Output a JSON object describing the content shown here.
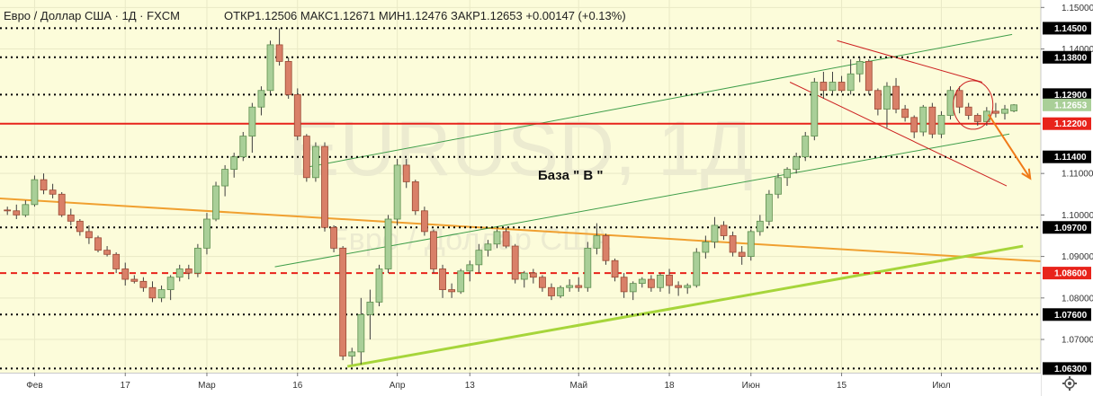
{
  "header": {
    "instrument": "Евро / Доллар США · 1Д · FXCM",
    "ohlc": "ОТКР1.12506  МАКС1.12671  МИН1.12476  ЗАКР1.12653  +0.00147 (+0.13%)"
  },
  "watermark": {
    "symbol": "EURUSD, 1Д",
    "name": "Евро / Доллар США"
  },
  "annotation": {
    "text": "База \" В \""
  },
  "colors": {
    "background": "#fcfcda",
    "bull": "#a9cf98",
    "bear": "#d98068",
    "level_line": "#000000",
    "red_line": "#e8231b",
    "orange_line": "#f0a030",
    "channel_green": "#3f9e4a",
    "light_green": "#a6d53a",
    "down_channel": "#cc2020",
    "arrow": "#f07a18"
  },
  "chart_data": {
    "type": "candlestick",
    "symbol": "EURUSD",
    "timeframe": "1Д",
    "ylim": [
      1.062,
      1.1518
    ],
    "price_ticks": [
      "1.15000",
      "1.14000",
      "1.11000",
      "1.10000",
      "1.09000",
      "1.08000",
      "1.07000"
    ],
    "date_ticks": [
      {
        "label": "Фев",
        "bar": 3
      },
      {
        "label": "17",
        "bar": 13
      },
      {
        "label": "Мар",
        "bar": 22
      },
      {
        "label": "16",
        "bar": 32
      },
      {
        "label": "Апр",
        "bar": 43
      },
      {
        "label": "13",
        "bar": 51
      },
      {
        "label": "Май",
        "bar": 63
      },
      {
        "label": "18",
        "bar": 73
      },
      {
        "label": "Июн",
        "bar": 82
      },
      {
        "label": "15",
        "bar": 92
      },
      {
        "label": "Июл",
        "bar": 103
      }
    ],
    "levels": [
      {
        "value": 1.145,
        "label": "1.14500",
        "style": "dotted",
        "color": "#000000"
      },
      {
        "value": 1.138,
        "label": "1.13800",
        "style": "dotted",
        "color": "#000000"
      },
      {
        "value": 1.129,
        "label": "1.12900",
        "style": "dotted",
        "color": "#000000"
      },
      {
        "value": 1.122,
        "label": "1.12200",
        "style": "solid",
        "color": "#e8231b"
      },
      {
        "value": 1.114,
        "label": "1.11400",
        "style": "dotted",
        "color": "#000000"
      },
      {
        "value": 1.097,
        "label": "1.09700",
        "style": "dotted",
        "color": "#000000"
      },
      {
        "value": 1.086,
        "label": "1.08600",
        "style": "dashed",
        "color": "#e8231b"
      },
      {
        "value": 1.076,
        "label": "1.07600",
        "style": "dotted",
        "color": "#000000"
      },
      {
        "value": 1.063,
        "label": "1.06300",
        "style": "dotted",
        "color": "#000000"
      }
    ],
    "last_price": {
      "value": 1.12653,
      "label": "1.12653"
    },
    "candles": [
      [
        1.1012,
        1.102,
        1.1,
        1.101
      ],
      [
        1.101,
        1.1025,
        1.099,
        1.1
      ],
      [
        1.1,
        1.1035,
        1.0995,
        1.1025
      ],
      [
        1.1025,
        1.1095,
        1.102,
        1.1085
      ],
      [
        1.1085,
        1.11,
        1.105,
        1.106
      ],
      [
        1.106,
        1.1075,
        1.104,
        1.105
      ],
      [
        1.105,
        1.1055,
        1.0995,
        1.1
      ],
      [
        1.1,
        1.1015,
        1.0975,
        1.0985
      ],
      [
        1.0985,
        1.099,
        1.095,
        1.096
      ],
      [
        1.096,
        1.0975,
        1.093,
        1.0945
      ],
      [
        1.0945,
        1.095,
        1.091,
        1.0915
      ],
      [
        1.0915,
        1.0925,
        1.09,
        1.0905
      ],
      [
        1.0905,
        1.091,
        1.086,
        1.087
      ],
      [
        1.087,
        1.0885,
        1.083,
        1.0845
      ],
      [
        1.0845,
        1.0855,
        1.0835,
        1.084
      ],
      [
        1.084,
        1.085,
        1.0815,
        1.0825
      ],
      [
        1.0825,
        1.084,
        1.079,
        1.08
      ],
      [
        1.08,
        1.083,
        1.079,
        1.082
      ],
      [
        1.082,
        1.0855,
        1.0795,
        1.085
      ],
      [
        1.085,
        1.088,
        1.084,
        1.087
      ],
      [
        1.087,
        1.088,
        1.0845,
        1.086
      ],
      [
        1.086,
        1.093,
        1.085,
        1.092
      ],
      [
        1.092,
        1.1005,
        1.0905,
        1.099
      ],
      [
        1.099,
        1.108,
        1.0985,
        1.107
      ],
      [
        1.107,
        1.112,
        1.1045,
        1.111
      ],
      [
        1.111,
        1.115,
        1.109,
        1.114
      ],
      [
        1.114,
        1.12,
        1.113,
        1.119
      ],
      [
        1.119,
        1.127,
        1.115,
        1.126
      ],
      [
        1.126,
        1.131,
        1.124,
        1.13
      ],
      [
        1.13,
        1.142,
        1.129,
        1.141
      ],
      [
        1.141,
        1.145,
        1.136,
        1.137
      ],
      [
        1.137,
        1.138,
        1.128,
        1.129
      ],
      [
        1.129,
        1.1305,
        1.118,
        1.119
      ],
      [
        1.119,
        1.1195,
        1.108,
        1.109
      ],
      [
        1.109,
        1.1175,
        1.108,
        1.1165
      ],
      [
        1.1165,
        1.1175,
        1.096,
        1.097
      ],
      [
        1.097,
        1.0975,
        1.091,
        1.092
      ],
      [
        1.092,
        1.0925,
        1.065,
        1.066
      ],
      [
        1.066,
        1.068,
        1.064,
        1.067
      ],
      [
        1.067,
        1.08,
        1.064,
        1.076
      ],
      [
        1.076,
        1.082,
        1.07,
        1.079
      ],
      [
        1.079,
        1.088,
        1.078,
        1.087
      ],
      [
        1.087,
        1.1,
        1.086,
        1.099
      ],
      [
        1.099,
        1.1135,
        1.0975,
        1.112
      ],
      [
        1.112,
        1.1135,
        1.1065,
        1.108
      ],
      [
        1.108,
        1.1085,
        1.1,
        1.101
      ],
      [
        1.101,
        1.102,
        1.095,
        1.096
      ],
      [
        1.096,
        1.0965,
        1.086,
        1.087
      ],
      [
        1.087,
        1.088,
        1.08,
        1.082
      ],
      [
        1.082,
        1.0835,
        1.08,
        1.0815
      ],
      [
        1.0815,
        1.087,
        1.081,
        1.0865
      ],
      [
        1.0865,
        1.089,
        1.084,
        1.088
      ],
      [
        1.088,
        1.093,
        1.086,
        1.0915
      ],
      [
        1.0915,
        1.094,
        1.09,
        1.093
      ],
      [
        1.093,
        1.0965,
        1.092,
        1.096
      ],
      [
        1.096,
        1.097,
        1.092,
        1.0925
      ],
      [
        1.0925,
        1.093,
        1.0835,
        1.0845
      ],
      [
        1.0845,
        1.0865,
        1.0825,
        1.086
      ],
      [
        1.086,
        1.087,
        1.0835,
        1.085
      ],
      [
        1.085,
        1.0855,
        1.0815,
        1.0825
      ],
      [
        1.0825,
        1.0835,
        1.0795,
        1.0805
      ],
      [
        1.0805,
        1.083,
        1.08,
        1.0825
      ],
      [
        1.0825,
        1.0845,
        1.0815,
        1.083
      ],
      [
        1.083,
        1.085,
        1.0815,
        1.0825
      ],
      [
        1.0825,
        1.0935,
        1.0815,
        1.092
      ],
      [
        1.092,
        1.098,
        1.0905,
        1.095
      ],
      [
        1.095,
        1.0955,
        1.088,
        1.089
      ],
      [
        1.089,
        1.0895,
        1.084,
        1.085
      ],
      [
        1.085,
        1.086,
        1.08,
        1.0815
      ],
      [
        1.0815,
        1.084,
        1.0795,
        1.0835
      ],
      [
        1.0835,
        1.085,
        1.0825,
        1.0845
      ],
      [
        1.0845,
        1.0855,
        1.0815,
        1.0825
      ],
      [
        1.0825,
        1.086,
        1.0815,
        1.0855
      ],
      [
        1.0855,
        1.087,
        1.081,
        1.083
      ],
      [
        1.083,
        1.084,
        1.0805,
        1.0825
      ],
      [
        1.0825,
        1.0835,
        1.081,
        1.083
      ],
      [
        1.083,
        1.092,
        1.0825,
        1.091
      ],
      [
        1.091,
        1.095,
        1.0895,
        1.0935
      ],
      [
        1.0935,
        1.0995,
        1.092,
        1.0975
      ],
      [
        1.0975,
        1.0985,
        1.094,
        1.095
      ],
      [
        1.095,
        1.096,
        1.09,
        1.091
      ],
      [
        1.091,
        1.0925,
        1.088,
        1.09
      ],
      [
        1.09,
        1.0965,
        1.089,
        1.096
      ],
      [
        1.096,
        1.1,
        1.095,
        1.0985
      ],
      [
        1.0985,
        1.106,
        1.0975,
        1.105
      ],
      [
        1.105,
        1.11,
        1.104,
        1.109
      ],
      [
        1.109,
        1.1115,
        1.107,
        1.111
      ],
      [
        1.111,
        1.115,
        1.11,
        1.114
      ],
      [
        1.114,
        1.12,
        1.113,
        1.119
      ],
      [
        1.119,
        1.133,
        1.118,
        1.132
      ],
      [
        1.132,
        1.1345,
        1.128,
        1.13
      ],
      [
        1.13,
        1.1345,
        1.129,
        1.132
      ],
      [
        1.132,
        1.1335,
        1.1295,
        1.13
      ],
      [
        1.13,
        1.1375,
        1.129,
        1.134
      ],
      [
        1.134,
        1.138,
        1.132,
        1.137
      ],
      [
        1.137,
        1.1375,
        1.129,
        1.13
      ],
      [
        1.13,
        1.1305,
        1.124,
        1.1255
      ],
      [
        1.1255,
        1.132,
        1.121,
        1.131
      ],
      [
        1.131,
        1.133,
        1.1245,
        1.1255
      ],
      [
        1.1255,
        1.1265,
        1.1225,
        1.1235
      ],
      [
        1.1235,
        1.124,
        1.1185,
        1.12
      ],
      [
        1.12,
        1.1265,
        1.119,
        1.126
      ],
      [
        1.126,
        1.127,
        1.1185,
        1.1195
      ],
      [
        1.1195,
        1.125,
        1.1185,
        1.124
      ],
      [
        1.124,
        1.131,
        1.123,
        1.13
      ],
      [
        1.13,
        1.131,
        1.1245,
        1.126
      ],
      [
        1.126,
        1.127,
        1.123,
        1.124
      ],
      [
        1.124,
        1.1245,
        1.1215,
        1.1225
      ],
      [
        1.1225,
        1.126,
        1.1215,
        1.125
      ],
      [
        1.125,
        1.127,
        1.1235,
        1.1245
      ],
      [
        1.1245,
        1.1265,
        1.123,
        1.1255
      ],
      [
        1.12506,
        1.12671,
        1.12476,
        1.12653
      ]
    ]
  }
}
